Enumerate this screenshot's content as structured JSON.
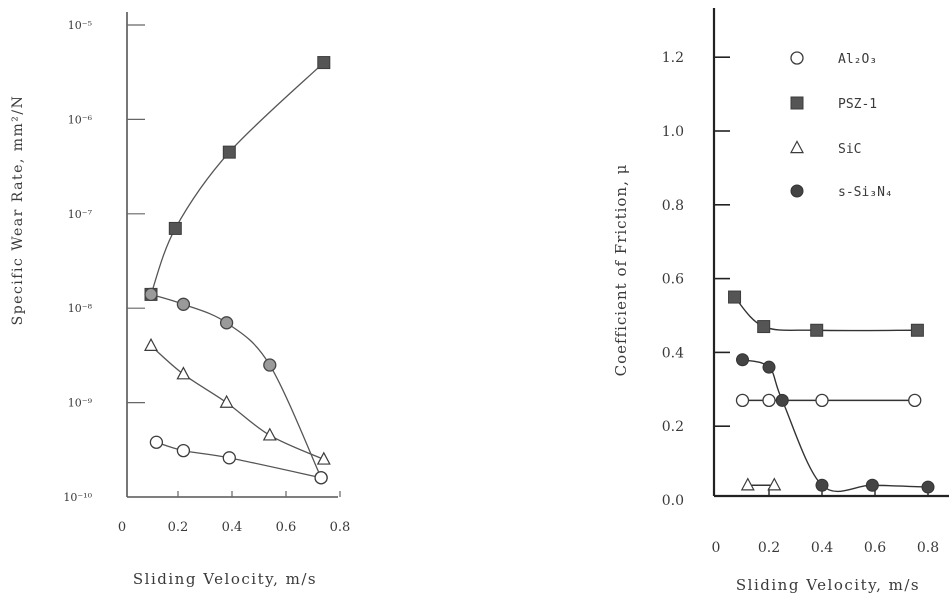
{
  "chart_data": [
    {
      "type": "line",
      "title": "",
      "xlabel": "Sliding Velocity, m/s",
      "ylabel": "Specific Wear Rate, mm²/N",
      "yscale": "log",
      "xlim": [
        0,
        0.88
      ],
      "ylim_exp": [
        -10,
        -5
      ],
      "x_ticks": [
        0,
        0.2,
        0.4,
        0.6,
        0.8
      ],
      "x_tick_labels": [
        "0",
        "0.2",
        "0.4",
        "0.6",
        "0.8"
      ],
      "y_ticks_exp": [
        -10,
        -9,
        -8,
        -7,
        -6,
        -5
      ],
      "y_tick_labels": [
        "10⁻¹⁰",
        "10⁻⁹",
        "10⁻⁸",
        "10⁻⁷",
        "10⁻⁶",
        "10⁻⁵"
      ],
      "grid": false,
      "series": [
        {
          "marker": "square",
          "x": [
            0.1,
            0.19,
            0.39,
            0.74
          ],
          "y": [
            1.4e-08,
            7e-08,
            4.5e-07,
            4e-06
          ]
        },
        {
          "marker": "dotted-circle",
          "x": [
            0.1,
            0.22,
            0.38,
            0.54,
            0.73
          ],
          "y": [
            1.4e-08,
            1.1e-08,
            7e-09,
            2.5e-09,
            1.6e-10
          ]
        },
        {
          "marker": "triangle",
          "x": [
            0.1,
            0.22,
            0.38,
            0.54,
            0.74
          ],
          "y": [
            4e-09,
            2e-09,
            1e-09,
            4.5e-10,
            2.5e-10
          ]
        },
        {
          "marker": "open-circle",
          "x": [
            0.12,
            0.22,
            0.39,
            0.73
          ],
          "y": [
            3.8e-10,
            3.1e-10,
            2.6e-10,
            1.6e-10
          ]
        }
      ]
    },
    {
      "type": "line",
      "title": "",
      "xlabel": "Sliding Velocity, m/s",
      "ylabel": "Coefficient of Friction, μ",
      "xlim": [
        0,
        0.8
      ],
      "ylim": [
        0,
        1.3
      ],
      "x_ticks": [
        0,
        0.2,
        0.4,
        0.6,
        0.8
      ],
      "x_tick_labels": [
        "0",
        "0.2",
        "0.4",
        "0.6",
        "0.8"
      ],
      "y_ticks": [
        0,
        0.2,
        0.4,
        0.6,
        0.8,
        1.0,
        1.2
      ],
      "y_tick_labels": [
        "0.0",
        "0.2",
        "0.4",
        "0.6",
        "0.8",
        "1.0",
        "1.2"
      ],
      "grid": false,
      "legend_position": "top-right",
      "series": [
        {
          "name": "Al₂O₃",
          "marker": "open-circle",
          "x": [
            0.1,
            0.2,
            0.4,
            0.75
          ],
          "y": [
            0.27,
            0.27,
            0.27,
            0.27
          ]
        },
        {
          "name": "PSZ-1",
          "marker": "square",
          "x": [
            0.07,
            0.18,
            0.38,
            0.76
          ],
          "y": [
            0.55,
            0.47,
            0.46,
            0.46
          ]
        },
        {
          "name": "SiC",
          "marker": "triangle",
          "x": [
            0.12,
            0.22
          ],
          "y": [
            0.04,
            0.04
          ]
        },
        {
          "name": "s-Si₃N₄",
          "marker": "filled-circle",
          "x": [
            0.1,
            0.2,
            0.25,
            0.4,
            0.59,
            0.8
          ],
          "y": [
            0.38,
            0.36,
            0.27,
            0.04,
            0.04,
            0.035
          ]
        }
      ]
    }
  ]
}
